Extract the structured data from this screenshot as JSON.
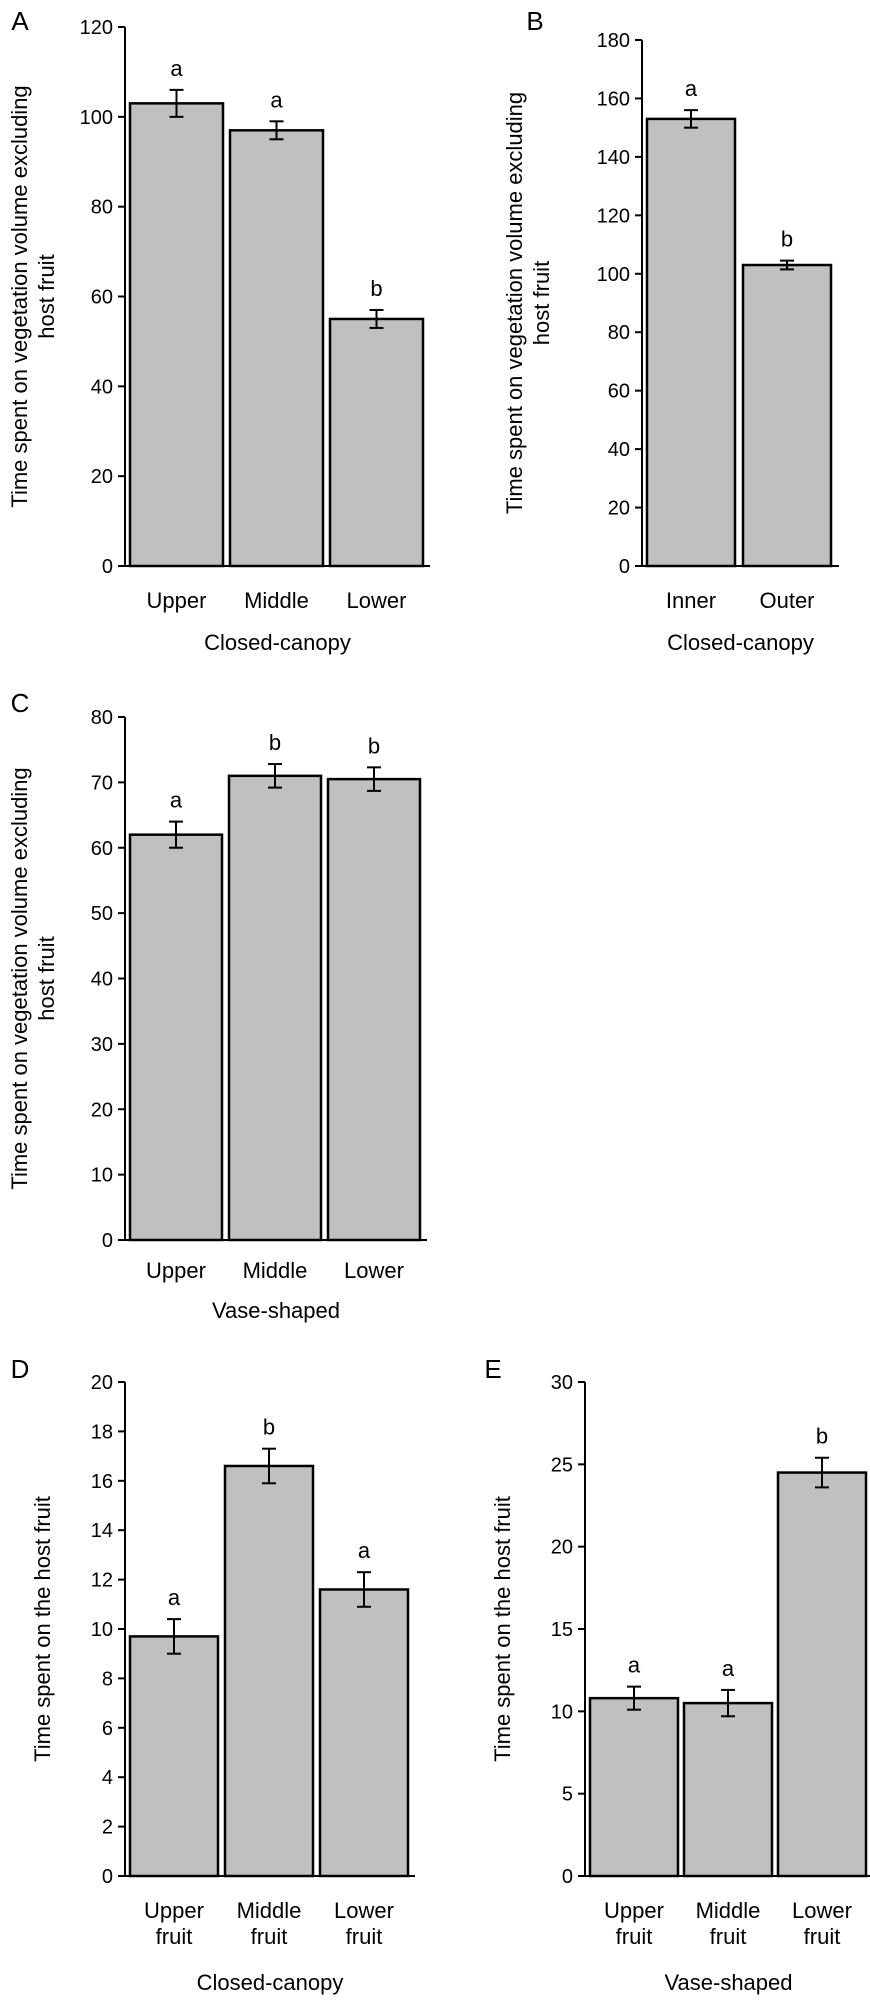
{
  "colors": {
    "bar_fill": "#c0c0c0",
    "bar_stroke": "#000000",
    "axis": "#000000"
  },
  "chart_data": [
    {
      "panel": "A",
      "type": "bar",
      "categories": [
        [
          "Upper"
        ],
        [
          "Middle"
        ],
        [
          "Lower"
        ]
      ],
      "values": [
        103,
        97,
        55
      ],
      "errors": [
        3,
        2,
        2
      ],
      "letters": [
        "a",
        "a",
        "b"
      ],
      "xlabel": "Closed-canopy",
      "ylabel": [
        "Time spent on vegetation volume excluding",
        "host fruit"
      ],
      "ylim": [
        0,
        120
      ],
      "yticks": [
        0,
        20,
        40,
        60,
        80,
        100,
        120
      ],
      "grid": false
    },
    {
      "panel": "B",
      "type": "bar",
      "categories": [
        [
          "Inner"
        ],
        [
          "Outer"
        ]
      ],
      "values": [
        153,
        103
      ],
      "errors": [
        3,
        1.5
      ],
      "letters": [
        "a",
        "b"
      ],
      "xlabel": "Closed-canopy",
      "ylabel": [
        "Time spent on vegetation volume excluding",
        "host fruit"
      ],
      "ylim": [
        0,
        180
      ],
      "yticks": [
        0,
        20,
        40,
        60,
        80,
        100,
        120,
        140,
        160,
        180
      ],
      "grid": false
    },
    {
      "panel": "C",
      "type": "bar",
      "categories": [
        [
          "Upper"
        ],
        [
          "Middle"
        ],
        [
          "Lower"
        ]
      ],
      "values": [
        62,
        71,
        70.5
      ],
      "errors": [
        2,
        1.8,
        1.8
      ],
      "letters": [
        "a",
        "b",
        "b"
      ],
      "xlabel": "Vase-shaped",
      "ylabel": [
        "Time spent on vegetation volume excluding",
        "host fruit"
      ],
      "ylim": [
        0,
        80
      ],
      "yticks": [
        0,
        10,
        20,
        30,
        40,
        50,
        60,
        70,
        80
      ],
      "grid": false
    },
    {
      "panel": "D",
      "type": "bar",
      "categories": [
        [
          "Upper",
          "fruit"
        ],
        [
          "Middle",
          "fruit"
        ],
        [
          "Lower",
          "fruit"
        ]
      ],
      "values": [
        9.7,
        16.6,
        11.6
      ],
      "errors": [
        0.7,
        0.7,
        0.7
      ],
      "letters": [
        "a",
        "b",
        "a"
      ],
      "xlabel": "Closed-canopy",
      "ylabel": [
        "Time spent on the host fruit"
      ],
      "ylim": [
        0,
        20
      ],
      "yticks": [
        0,
        2,
        4,
        6,
        8,
        10,
        12,
        14,
        16,
        18,
        20
      ],
      "grid": false
    },
    {
      "panel": "E",
      "type": "bar",
      "categories": [
        [
          "Upper",
          "fruit"
        ],
        [
          "Middle",
          "fruit"
        ],
        [
          "Lower",
          "fruit"
        ]
      ],
      "values": [
        10.8,
        10.5,
        24.5
      ],
      "errors": [
        0.7,
        0.8,
        0.9
      ],
      "letters": [
        "a",
        "a",
        "b"
      ],
      "xlabel": "Vase-shaped",
      "ylabel": [
        "Time spent on the host fruit"
      ],
      "ylim": [
        0,
        30
      ],
      "yticks": [
        0,
        5,
        10,
        15,
        20,
        25,
        30
      ],
      "grid": false
    }
  ]
}
